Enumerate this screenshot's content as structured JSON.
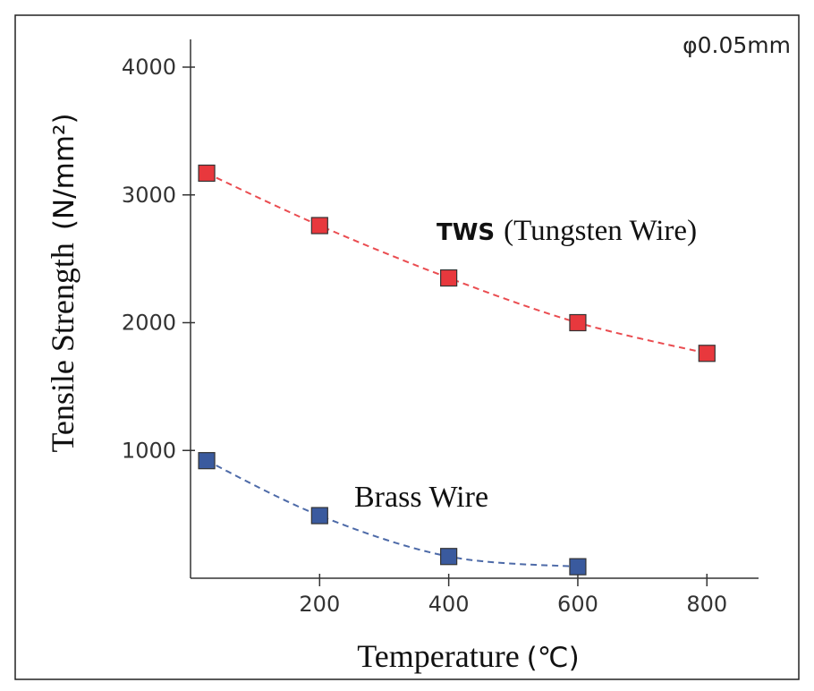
{
  "chart_data": {
    "type": "scatter",
    "title": "",
    "annotation": "φ0.05mm",
    "xlabel": "Temperature",
    "xunit": "(℃)",
    "ylabel": "Tensile Strength",
    "yunit": "(N/mm²)",
    "xlim": [
      0,
      880
    ],
    "ylim": [
      0,
      4000
    ],
    "x_ticks": [
      200,
      400,
      600,
      800
    ],
    "y_ticks": [
      1000,
      2000,
      3000,
      4000
    ],
    "grid": false,
    "series": [
      {
        "name": "TWS (Tungsten Wire)",
        "label_prefix": "TWS",
        "label_rest": "(Tungsten Wire)",
        "color": "#e8383d",
        "line_style": "dashed",
        "points": [
          {
            "x": 25,
            "y": 3170
          },
          {
            "x": 200,
            "y": 2760
          },
          {
            "x": 400,
            "y": 2350
          },
          {
            "x": 600,
            "y": 2000
          },
          {
            "x": 800,
            "y": 1760
          }
        ]
      },
      {
        "name": "Brass Wire",
        "color": "#3a5a9e",
        "line_style": "dashed",
        "points": [
          {
            "x": 25,
            "y": 920
          },
          {
            "x": 200,
            "y": 490
          },
          {
            "x": 400,
            "y": 170
          },
          {
            "x": 600,
            "y": 90
          }
        ]
      }
    ]
  }
}
